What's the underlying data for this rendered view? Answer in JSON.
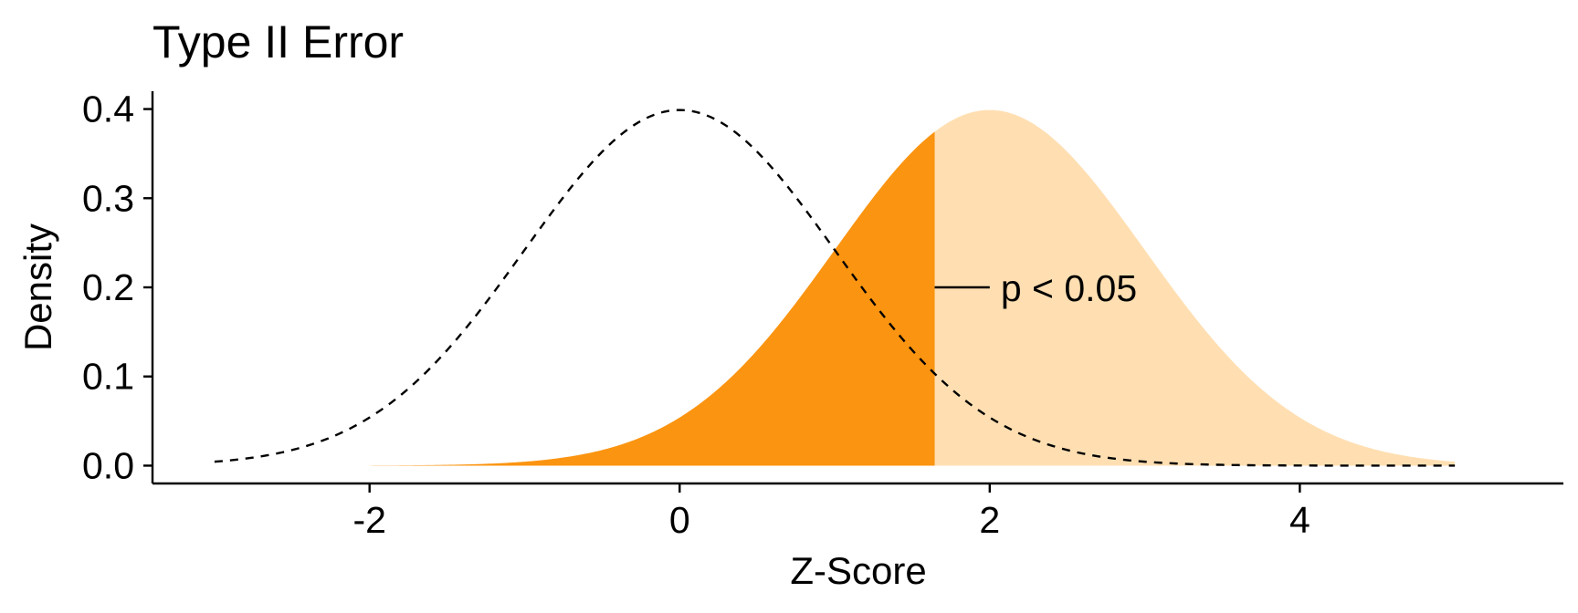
{
  "chart_data": {
    "type": "area",
    "title": "Type II Error",
    "xlabel": "Z-Score",
    "ylabel": "Density",
    "xlim": [
      -3.4,
      5.7
    ],
    "ylim": [
      -0.02,
      0.42
    ],
    "x_ticks": [
      -2,
      0,
      2,
      4
    ],
    "x_tick_labels": [
      "-2",
      "0",
      "2",
      "4"
    ],
    "y_ticks": [
      0.0,
      0.1,
      0.2,
      0.3,
      0.4
    ],
    "y_tick_labels": [
      "0.0",
      "0.1",
      "0.2",
      "0.3",
      "0.4"
    ],
    "grid": false,
    "series": [
      {
        "kind": "dashed-line",
        "mean": 0,
        "sd": 1,
        "x_range": [
          -3,
          5
        ],
        "color": "#000000"
      },
      {
        "kind": "filled-area",
        "mean": 2,
        "sd": 1,
        "x_range": [
          1.645,
          5
        ],
        "color": "#FFDFB2"
      },
      {
        "kind": "filled-area",
        "mean": 2,
        "sd": 1,
        "x_range": [
          -2,
          1.645
        ],
        "color": "#FB9410"
      }
    ],
    "annotations": [
      {
        "text": "p < 0.05",
        "line_from": [
          1.645,
          0.2
        ],
        "line_to": [
          2.0,
          0.2
        ],
        "color": "#000000"
      }
    ]
  }
}
